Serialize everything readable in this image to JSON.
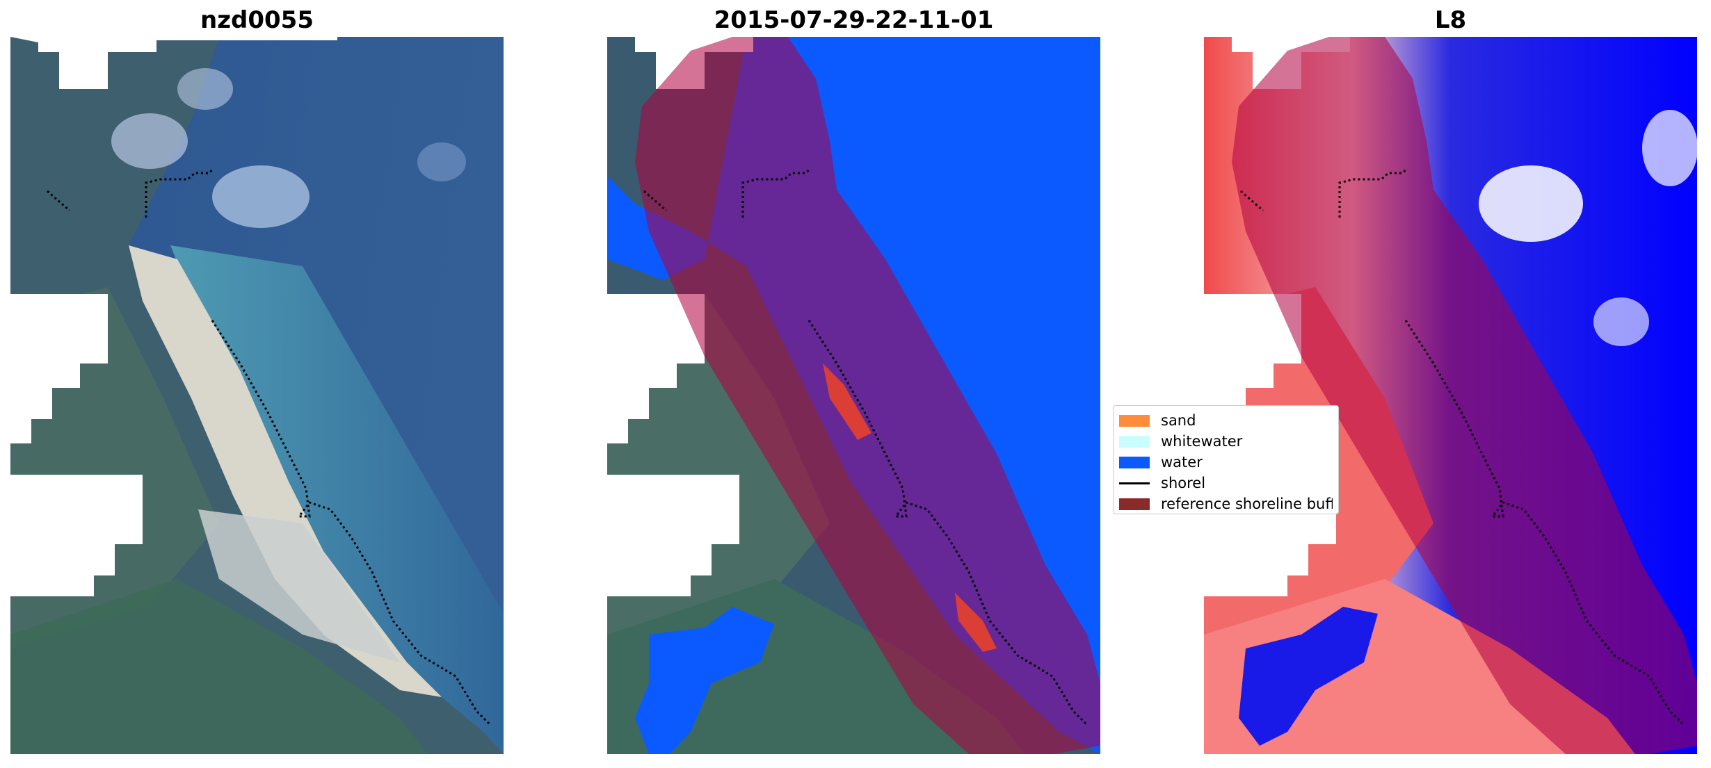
{
  "panels": [
    {
      "title": "nzd0055"
    },
    {
      "title": "2015-07-29-22-11-01"
    },
    {
      "title": "L8"
    }
  ],
  "legend": {
    "items": [
      {
        "label": "sand",
        "color": "#ff8c3a"
      },
      {
        "label": "whitewater",
        "color": "#c8fffd"
      },
      {
        "label": "water",
        "color": "#0a5aff"
      },
      {
        "label": "shorel",
        "color": "#000000"
      },
      {
        "label": "reference shoreline buffe",
        "color": "#8b2a2a"
      }
    ]
  },
  "colors": {
    "buffer": "#b00040",
    "shoreline": "#000000",
    "ocean_rgb": "#2f5f98",
    "nearshore": "#3f9ab0",
    "sand_beach": "#d8d4c8",
    "water_class": "#0a5aff",
    "sand_class": "#e8402a",
    "index_water": "#0000ff",
    "index_land": "#f04a4a"
  }
}
